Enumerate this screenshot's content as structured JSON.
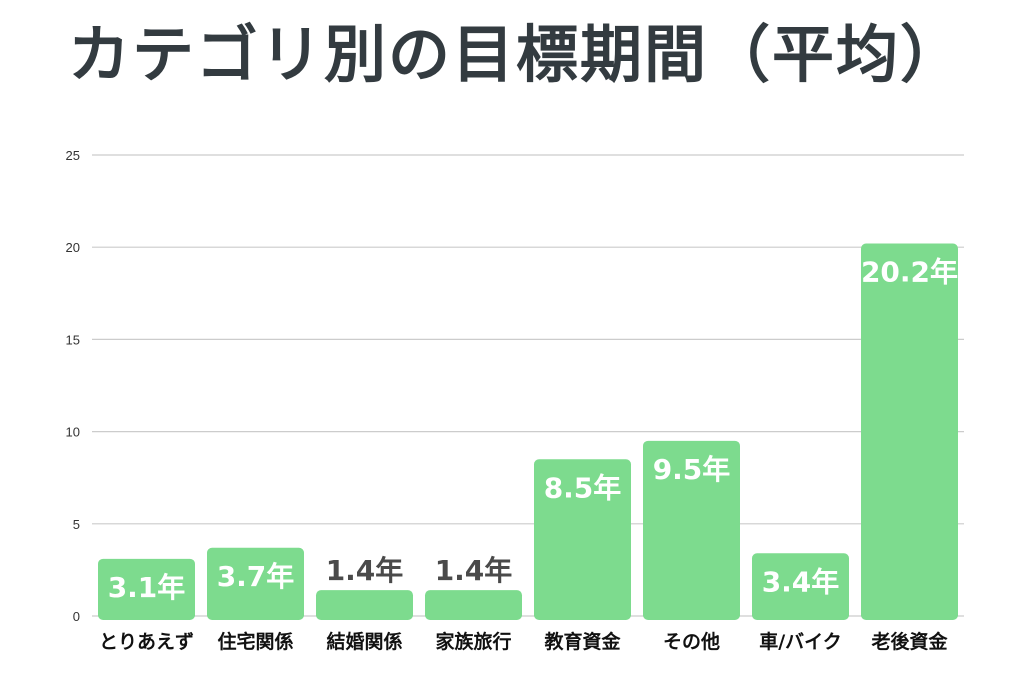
{
  "chart_data": {
    "type": "bar",
    "title": "カテゴリ別の目標期間（平均）",
    "xlabel": "",
    "ylabel": "",
    "ylim": [
      0,
      25
    ],
    "yticks": [
      0,
      5,
      10,
      15,
      20,
      25
    ],
    "grid": true,
    "categories": [
      "とりあえず",
      "住宅関係",
      "結婚関係",
      "家族旅行",
      "教育資金",
      "その他",
      "車/バイク",
      "老後資金"
    ],
    "values": [
      3.1,
      3.7,
      1.4,
      1.4,
      8.5,
      9.5,
      3.4,
      20.2
    ],
    "data_labels": [
      "3.1年",
      "3.7年",
      "1.4年",
      "1.4年",
      "8.5年",
      "9.5年",
      "3.4年",
      "20.2年"
    ],
    "colors": {
      "bar": "#7ddb8e",
      "label_inside": "#ffffff",
      "label_outside": "#4a4a4a",
      "grid": "#cccccc",
      "title": "#333b40"
    }
  }
}
